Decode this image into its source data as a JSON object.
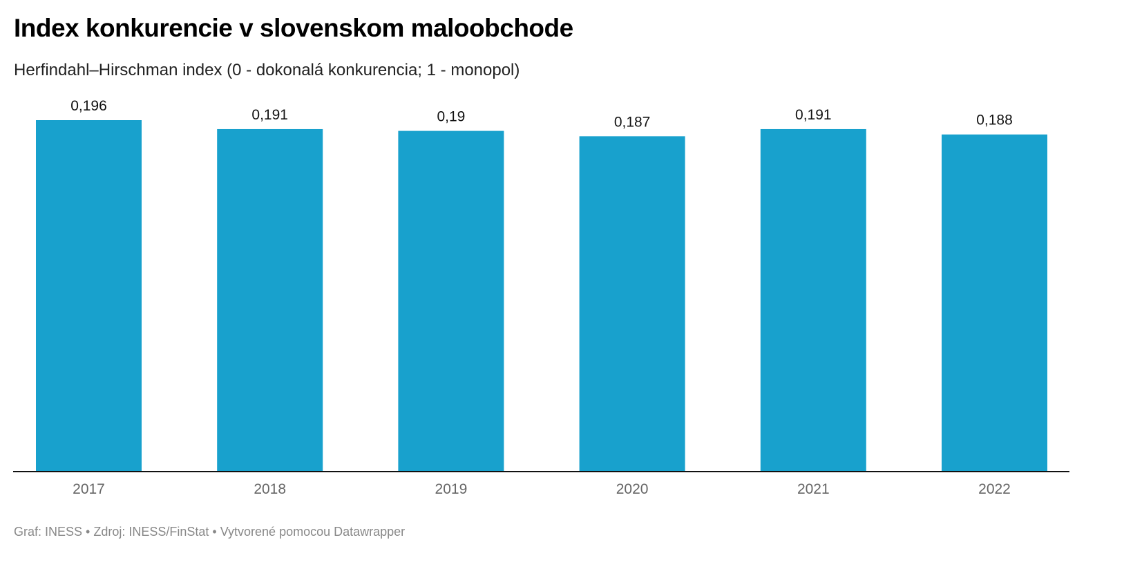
{
  "chart_data": {
    "type": "bar",
    "title": "Index konkurencie v slovenskom maloobchode",
    "subtitle": "Herfindahl–Hirschman index (0 - dokonalá konkurencia; 1 - monopol)",
    "categories": [
      "2017",
      "2018",
      "2019",
      "2020",
      "2021",
      "2022"
    ],
    "values": [
      0.196,
      0.191,
      0.19,
      0.187,
      0.191,
      0.188
    ],
    "value_labels": [
      "0,196",
      "0,191",
      "0,19",
      "0,187",
      "0,191",
      "0,188"
    ],
    "ylim": [
      0,
      0.196
    ],
    "grid": false,
    "bar_color": "#18a1cd"
  },
  "footer": "Graf: INESS • Zdroj: INESS/FinStat • Vytvorené pomocou Datawrapper"
}
